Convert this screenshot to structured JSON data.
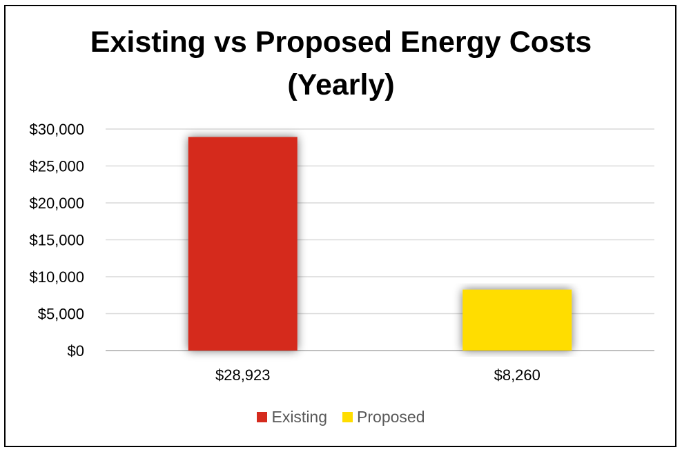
{
  "chart_data": {
    "type": "bar",
    "title_lines": [
      "Existing vs Proposed Energy Costs",
      "(Yearly)"
    ],
    "categories": [
      "$28,923",
      "$8,260"
    ],
    "series": [
      {
        "name": "Existing",
        "values": [
          28923,
          null
        ],
        "color": "#d52b1e"
      },
      {
        "name": "Proposed",
        "values": [
          null,
          8260
        ],
        "color": "#ffdd00"
      }
    ],
    "ylim": [
      0,
      30000
    ],
    "yticks": [
      0,
      5000,
      10000,
      15000,
      20000,
      25000,
      30000
    ],
    "ytick_labels": [
      "$0",
      "$5,000",
      "$10,000",
      "$15,000",
      "$20,000",
      "$25,000",
      "$30,000"
    ],
    "grid": true,
    "legend_position": "bottom"
  }
}
